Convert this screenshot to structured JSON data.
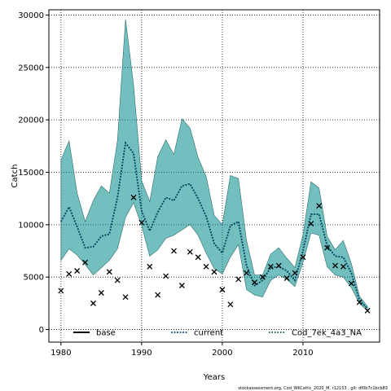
{
  "chart_data": {
    "type": "line",
    "xlabel": "Years",
    "ylabel": "Catch",
    "xlim": [
      1978.5,
      2019.5
    ],
    "ylim": [
      -1200,
      30500
    ],
    "x_ticks": [
      1980,
      1990,
      2000,
      2010
    ],
    "y_ticks": [
      0,
      5000,
      10000,
      15000,
      20000,
      25000,
      30000
    ],
    "grid": true,
    "legend_position": "bottom",
    "band_color": "#008B8B",
    "x": [
      1980,
      1981,
      1982,
      1983,
      1984,
      1985,
      1986,
      1987,
      1988,
      1989,
      1990,
      1991,
      1992,
      1993,
      1994,
      1995,
      1996,
      1997,
      1998,
      1999,
      2000,
      2001,
      2002,
      2003,
      2004,
      2005,
      2006,
      2007,
      2008,
      2009,
      2010,
      2011,
      2012,
      2013,
      2014,
      2015,
      2016,
      2017,
      2018
    ],
    "series": [
      {
        "name": "base",
        "style": "markers-x",
        "color": "#000000",
        "values": [
          3700,
          5300,
          5600,
          6400,
          2500,
          3500,
          5500,
          4700,
          3100,
          12600,
          10200,
          6000,
          3300,
          5100,
          7500,
          4200,
          7400,
          6900,
          6000,
          5500,
          3800,
          2400,
          4800,
          5400,
          4500,
          5000,
          6000,
          6100,
          4900,
          5400,
          6900,
          10100,
          11800,
          7800,
          6100,
          6000,
          4400,
          2600,
          1800
        ]
      },
      {
        "name": "current",
        "style": "dotted-line",
        "color": "#1F4E9A",
        "values": [
          10300,
          11700,
          9800,
          7800,
          7900,
          8900,
          9100,
          12600,
          17800,
          16800,
          11300,
          9400,
          11200,
          12600,
          12300,
          13700,
          13900,
          12500,
          10800,
          8200,
          7300,
          9900,
          10300,
          6100,
          4200,
          4700,
          5900,
          6000,
          5600,
          4700,
          7500,
          11000,
          11000,
          8000,
          7000,
          6900,
          5400,
          2800,
          2000
        ]
      },
      {
        "name": "Cod_7ek_4a3_NA",
        "style": "dotted-line",
        "color": "#004D4D",
        "values": [
          10300,
          11700,
          9800,
          7800,
          7900,
          8900,
          9100,
          12600,
          17800,
          16800,
          11300,
          9400,
          11200,
          12600,
          12300,
          13700,
          13900,
          12500,
          10800,
          8200,
          7300,
          9900,
          10300,
          6100,
          4200,
          4700,
          5900,
          6000,
          5600,
          4700,
          7500,
          11000,
          11000,
          8000,
          7000,
          6900,
          5400,
          2800,
          2000
        ]
      }
    ],
    "band_upper": [
      16200,
      18000,
      13000,
      10300,
      12300,
      13700,
      13000,
      18000,
      29600,
      23300,
      14200,
      12200,
      16500,
      18100,
      16700,
      20100,
      19200,
      16400,
      14600,
      10900,
      10000,
      14700,
      14400,
      8500,
      5200,
      5200,
      7200,
      7800,
      6800,
      5900,
      9000,
      14100,
      13500,
      8900,
      7600,
      8500,
      6300,
      3200,
      2200
    ],
    "band_lower": [
      6600,
      7700,
      7100,
      6200,
      5200,
      5900,
      6600,
      7700,
      10700,
      12100,
      9900,
      7000,
      7600,
      8700,
      9000,
      9500,
      10000,
      9000,
      7300,
      5800,
      5300,
      6900,
      8100,
      3800,
      3300,
      3100,
      4700,
      5200,
      4800,
      4100,
      6400,
      9200,
      9000,
      6000,
      5200,
      5000,
      4000,
      2500,
      1800
    ]
  },
  "footer": "stockassessment.org, Cod_WKCeltic_2020_M, r12153 , git: df0b7c1bcb83"
}
